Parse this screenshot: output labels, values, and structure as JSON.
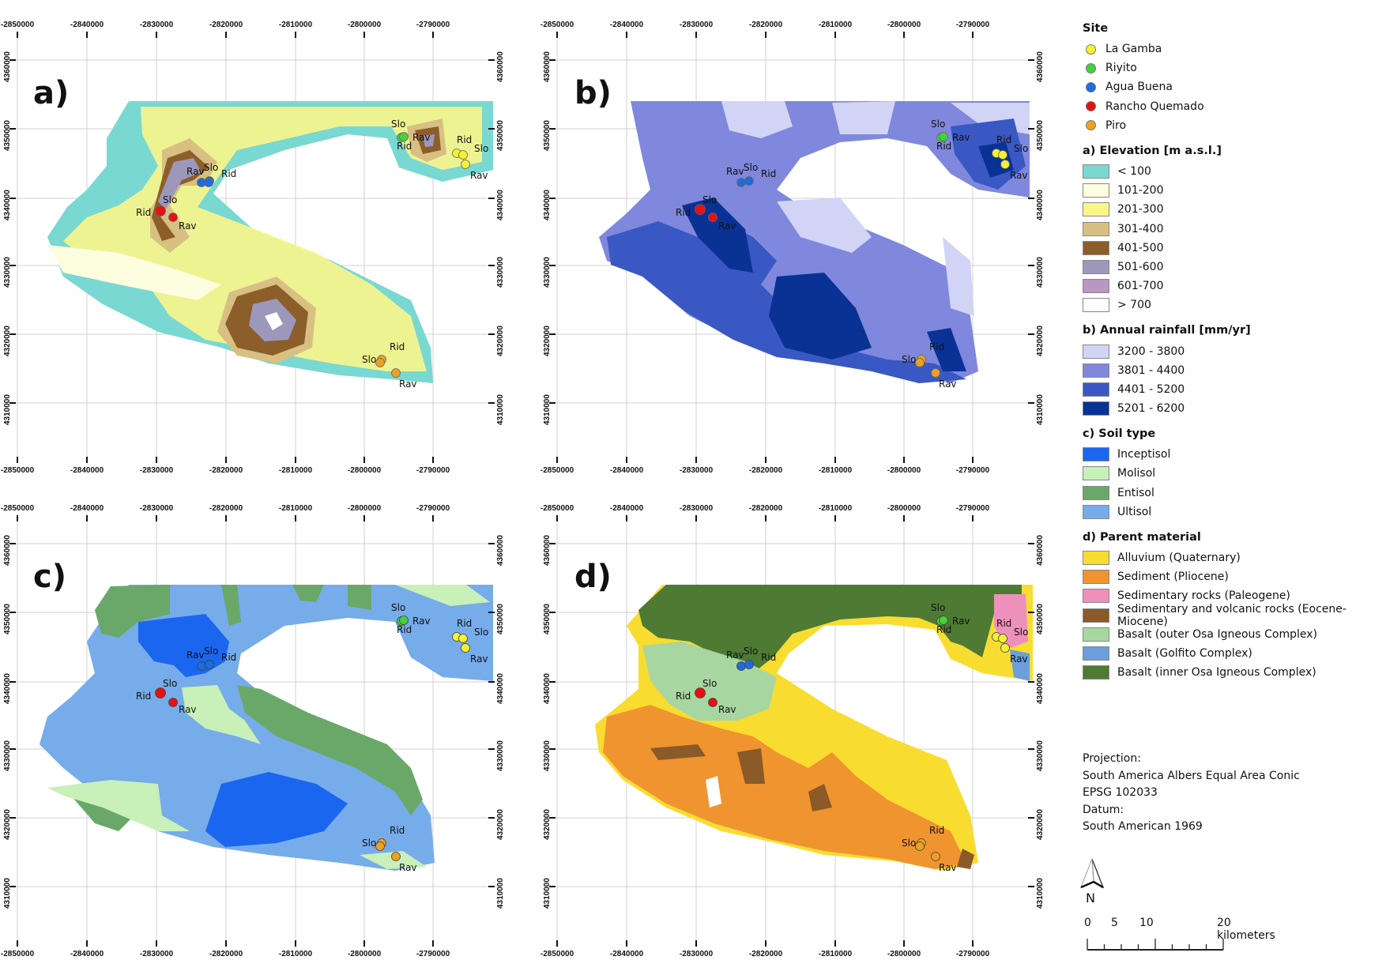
{
  "figure": {
    "x_ticks": [
      "-2850000",
      "-2840000",
      "-2830000",
      "-2820000",
      "-2810000",
      "-2800000",
      "-2790000"
    ],
    "y_ticks": [
      "4360000",
      "4350000",
      "4340000",
      "4330000",
      "4320000",
      "4310000"
    ],
    "panels": [
      {
        "letter": "a)",
        "theme": "Elevation"
      },
      {
        "letter": "b)",
        "theme": "Annual rainfall"
      },
      {
        "letter": "c)",
        "theme": "Soil type"
      },
      {
        "letter": "d)",
        "theme": "Parent material"
      }
    ],
    "site_point_labels": {
      "slope": "Slo",
      "ridge": "Rid",
      "ravine": "Rav"
    }
  },
  "legend": {
    "site": {
      "title": "Site",
      "items": [
        {
          "label": "La Gamba",
          "color": "#f5f232"
        },
        {
          "label": "Riyito",
          "color": "#44d13a"
        },
        {
          "label": "Agua Buena",
          "color": "#1f6be0"
        },
        {
          "label": "Rancho Quemado",
          "color": "#e81010"
        },
        {
          "label": "Piro",
          "color": "#f0a020"
        }
      ]
    },
    "elevation": {
      "title": "a) Elevation [m a.s.l.]",
      "items": [
        {
          "label": "< 100",
          "color": "#79d8d2"
        },
        {
          "label": "101-200",
          "color": "#fdfde0"
        },
        {
          "label": "201-300",
          "color": "#fbf68a"
        },
        {
          "label": "301-400",
          "color": "#d8c083"
        },
        {
          "label": "401-500",
          "color": "#8c5e2a"
        },
        {
          "label": "501-600",
          "color": "#9c98bc"
        },
        {
          "label": "601-700",
          "color": "#b897c0"
        },
        {
          "label": "> 700",
          "color": "#ffffff"
        }
      ]
    },
    "rainfall": {
      "title": "b) Annual rainfall [mm/yr]",
      "items": [
        {
          "label": "3200 - 3800",
          "color": "#d2d4f6"
        },
        {
          "label": "3801 - 4400",
          "color": "#7f88dc"
        },
        {
          "label": "4401 - 5200",
          "color": "#3a58c4"
        },
        {
          "label": "5201 - 6200",
          "color": "#0a3294"
        }
      ]
    },
    "soil": {
      "title": "c) Soil type",
      "items": [
        {
          "label": "Inceptisol",
          "color": "#1b66ef"
        },
        {
          "label": "Molisol",
          "color": "#c8f0b8"
        },
        {
          "label": "Entisol",
          "color": "#6aa86a"
        },
        {
          "label": "Ultisol",
          "color": "#76acea"
        }
      ]
    },
    "parent": {
      "title": "d) Parent material",
      "items": [
        {
          "label": "Alluvium (Quaternary)",
          "color": "#f8dc30"
        },
        {
          "label": "Sediment (Pliocene)",
          "color": "#f09430"
        },
        {
          "label": "Sedimentary rocks (Paleogene)",
          "color": "#ee90bc"
        },
        {
          "label": "Sedimentary and volcanic rocks (Eocene-Miocene)",
          "color": "#8a5a28"
        },
        {
          "label": "Basalt (outer Osa Igneous Complex)",
          "color": "#a8d6a0"
        },
        {
          "label": "Basalt (Golfito Complex)",
          "color": "#6a9edc"
        },
        {
          "label": "Basalt (inner Osa Igneous Complex)",
          "color": "#4e7a34"
        }
      ]
    }
  },
  "projection": {
    "line1": "Projection:",
    "line2": "South America Albers Equal Area Conic",
    "line3": "EPSG 102033",
    "line4": "Datum:",
    "line5": "South American 1969"
  },
  "north_arrow": {
    "label": "N"
  },
  "scale_bar": {
    "labels": [
      "0",
      "5",
      "10",
      "20 kilometers"
    ]
  }
}
